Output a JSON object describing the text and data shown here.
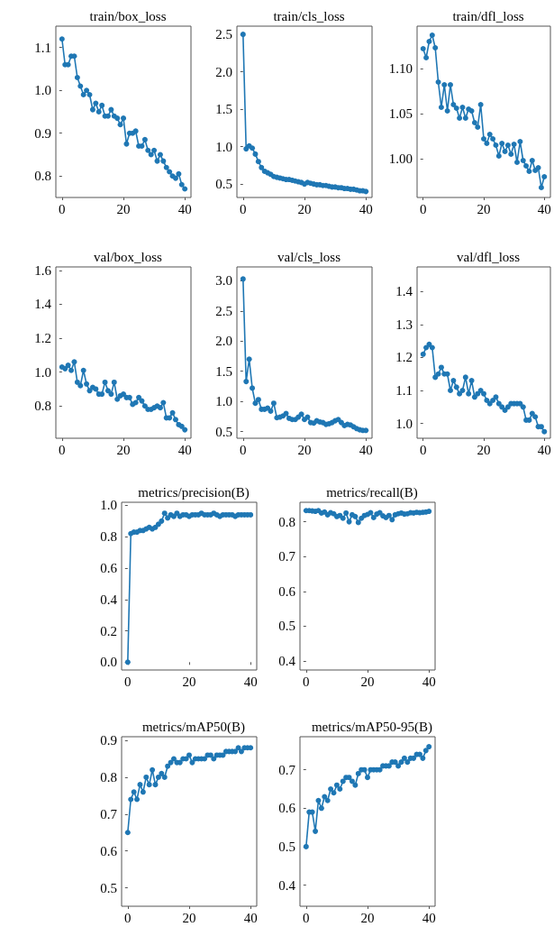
{
  "chart_data": [
    {
      "type": "line",
      "title": "train/box_loss",
      "x": [
        0,
        1,
        2,
        3,
        4,
        5,
        6,
        7,
        8,
        9,
        10,
        11,
        12,
        13,
        14,
        15,
        16,
        17,
        18,
        19,
        20,
        21,
        22,
        23,
        24,
        25,
        26,
        27,
        28,
        29,
        30,
        31,
        32,
        33,
        34,
        35,
        36,
        37,
        38,
        39,
        40
      ],
      "xlim": [
        -2,
        42
      ],
      "xticks": [
        0,
        20,
        40
      ],
      "ylim": [
        0.75,
        1.15
      ],
      "yticks": [
        0.8,
        0.9,
        {
          "value": 1,
          "label": "1.0"
        },
        1.1
      ],
      "grid": false,
      "marker": "circle",
      "line_style": "solid",
      "series": [
        {
          "color": "#1f77b4",
          "values": [
            1.12,
            1.06,
            1.06,
            1.08,
            1.08,
            1.03,
            1.01,
            0.99,
            1.0,
            0.99,
            0.955,
            0.97,
            0.95,
            0.965,
            0.94,
            0.94,
            0.955,
            0.94,
            0.935,
            0.92,
            0.935,
            0.875,
            0.9,
            0.9,
            0.905,
            0.87,
            0.87,
            0.885,
            0.86,
            0.85,
            0.86,
            0.835,
            0.85,
            0.835,
            0.82,
            0.81,
            0.8,
            0.795,
            0.805,
            0.78,
            0.77
          ]
        }
      ]
    },
    {
      "type": "line",
      "title": "train/cls_loss",
      "x": [
        0,
        1,
        2,
        3,
        4,
        5,
        6,
        7,
        8,
        9,
        10,
        11,
        12,
        13,
        14,
        15,
        16,
        17,
        18,
        19,
        20,
        21,
        22,
        23,
        24,
        25,
        26,
        27,
        28,
        29,
        30,
        31,
        32,
        33,
        34,
        35,
        36,
        37,
        38,
        39,
        40
      ],
      "xlim": [
        -2,
        42
      ],
      "xticks": [
        0,
        20,
        40
      ],
      "ylim": [
        0.32,
        2.61
      ],
      "yticks": [
        0.5,
        {
          "value": 1,
          "label": "1.0"
        },
        1.5,
        {
          "value": 2,
          "label": "2.0"
        },
        2.5
      ],
      "grid": false,
      "marker": "circle",
      "line_style": "solid",
      "series": [
        {
          "color": "#1f77b4",
          "values": [
            2.5,
            0.97,
            1.01,
            0.98,
            0.9,
            0.8,
            0.72,
            0.67,
            0.65,
            0.63,
            0.6,
            0.59,
            0.58,
            0.57,
            0.56,
            0.56,
            0.55,
            0.54,
            0.53,
            0.52,
            0.5,
            0.52,
            0.51,
            0.5,
            0.49,
            0.49,
            0.48,
            0.48,
            0.47,
            0.46,
            0.46,
            0.45,
            0.45,
            0.44,
            0.44,
            0.43,
            0.43,
            0.42,
            0.41,
            0.41,
            0.4
          ]
        }
      ]
    },
    {
      "type": "line",
      "title": "train/dfl_loss",
      "x": [
        0,
        1,
        2,
        3,
        4,
        5,
        6,
        7,
        8,
        9,
        10,
        11,
        12,
        13,
        14,
        15,
        16,
        17,
        18,
        19,
        20,
        21,
        22,
        23,
        24,
        25,
        26,
        27,
        28,
        29,
        30,
        31,
        32,
        33,
        34,
        35,
        36,
        37,
        38,
        39,
        40
      ],
      "xlim": [
        -2,
        42
      ],
      "xticks": [
        0,
        20,
        40
      ],
      "ylim": [
        0.957,
        1.147
      ],
      "yticks": [
        {
          "value": 1,
          "label": "1.00"
        },
        1.05,
        {
          "value": 1.1,
          "label": "1.10"
        }
      ],
      "grid": false,
      "marker": "circle",
      "line_style": "solid",
      "series": [
        {
          "color": "#1f77b4",
          "values": [
            1.122,
            1.112,
            1.13,
            1.137,
            1.123,
            1.085,
            1.057,
            1.082,
            1.053,
            1.082,
            1.06,
            1.056,
            1.045,
            1.057,
            1.045,
            1.055,
            1.053,
            1.04,
            1.035,
            1.06,
            1.022,
            1.017,
            1.027,
            1.022,
            1.015,
            1.003,
            1.017,
            1.008,
            1.015,
            1.005,
            1.016,
            0.996,
            1.019,
            0.998,
            0.992,
            0.986,
            0.998,
            0.987,
            0.99,
            0.968,
            0.98
          ]
        }
      ]
    },
    {
      "type": "line",
      "title": "val/box_loss",
      "x": [
        0,
        1,
        2,
        3,
        4,
        5,
        6,
        7,
        8,
        9,
        10,
        11,
        12,
        13,
        14,
        15,
        16,
        17,
        18,
        19,
        20,
        21,
        22,
        23,
        24,
        25,
        26,
        27,
        28,
        29,
        30,
        31,
        32,
        33,
        34,
        35,
        36,
        37,
        38,
        39,
        40
      ],
      "xlim": [
        -2,
        42
      ],
      "xticks": [
        0,
        20,
        40
      ],
      "ylim": [
        0.61,
        1.62
      ],
      "yticks": [
        0.8,
        {
          "value": 1,
          "label": "1.0"
        },
        1.2,
        1.4,
        1.6
      ],
      "grid": false,
      "marker": "circle",
      "line_style": "solid",
      "series": [
        {
          "color": "#1f77b4",
          "values": [
            1.03,
            1.02,
            1.04,
            1.01,
            1.06,
            0.94,
            0.92,
            1.01,
            0.93,
            0.89,
            0.91,
            0.9,
            0.87,
            0.87,
            0.94,
            0.89,
            0.87,
            0.94,
            0.84,
            0.86,
            0.87,
            0.85,
            0.85,
            0.81,
            0.82,
            0.85,
            0.83,
            0.8,
            0.78,
            0.78,
            0.79,
            0.8,
            0.79,
            0.82,
            0.73,
            0.73,
            0.76,
            0.72,
            0.69,
            0.68,
            0.66
          ]
        }
      ]
    },
    {
      "type": "line",
      "title": "val/cls_loss",
      "x": [
        0,
        1,
        2,
        3,
        4,
        5,
        6,
        7,
        8,
        9,
        10,
        11,
        12,
        13,
        14,
        15,
        16,
        17,
        18,
        19,
        20,
        21,
        22,
        23,
        24,
        25,
        26,
        27,
        28,
        29,
        30,
        31,
        32,
        33,
        34,
        35,
        36,
        37,
        38,
        39,
        40
      ],
      "xlim": [
        -2,
        42
      ],
      "xticks": [
        0,
        20,
        40
      ],
      "ylim": [
        0.39,
        3.23
      ],
      "yticks": [
        0.5,
        {
          "value": 1,
          "label": "1.0"
        },
        1.5,
        {
          "value": 2,
          "label": "2.0"
        },
        2.5,
        {
          "value": 3,
          "label": "3.0"
        }
      ],
      "grid": false,
      "marker": "circle",
      "line_style": "solid",
      "series": [
        {
          "color": "#1f77b4",
          "values": [
            3.03,
            1.33,
            1.7,
            1.22,
            0.97,
            1.03,
            0.87,
            0.87,
            0.89,
            0.84,
            0.97,
            0.73,
            0.74,
            0.76,
            0.8,
            0.72,
            0.7,
            0.7,
            0.74,
            0.79,
            0.7,
            0.74,
            0.65,
            0.64,
            0.68,
            0.66,
            0.65,
            0.62,
            0.63,
            0.65,
            0.68,
            0.7,
            0.65,
            0.6,
            0.62,
            0.61,
            0.58,
            0.55,
            0.53,
            0.52,
            0.52
          ]
        }
      ]
    },
    {
      "type": "line",
      "title": "val/dfl_loss",
      "x": [
        0,
        1,
        2,
        3,
        4,
        5,
        6,
        7,
        8,
        9,
        10,
        11,
        12,
        13,
        14,
        15,
        16,
        17,
        18,
        19,
        20,
        21,
        22,
        23,
        24,
        25,
        26,
        27,
        28,
        29,
        30,
        31,
        32,
        33,
        34,
        35,
        36,
        37,
        38,
        39,
        40
      ],
      "xlim": [
        -2,
        42
      ],
      "xticks": [
        0,
        20,
        40
      ],
      "ylim": [
        0.955,
        1.475
      ],
      "yticks": [
        {
          "value": 1,
          "label": "1.0"
        },
        1.1,
        1.2,
        1.3,
        1.4
      ],
      "grid": false,
      "marker": "circle",
      "line_style": "solid",
      "series": [
        {
          "color": "#1f77b4",
          "values": [
            1.21,
            1.23,
            1.24,
            1.23,
            1.14,
            1.15,
            1.17,
            1.15,
            1.15,
            1.1,
            1.13,
            1.11,
            1.09,
            1.1,
            1.14,
            1.09,
            1.13,
            1.08,
            1.09,
            1.1,
            1.09,
            1.07,
            1.06,
            1.07,
            1.08,
            1.06,
            1.05,
            1.04,
            1.05,
            1.06,
            1.06,
            1.06,
            1.06,
            1.05,
            1.01,
            1.01,
            1.03,
            1.02,
            0.99,
            0.99,
            0.975
          ]
        }
      ]
    },
    {
      "type": "line",
      "title": "metrics/precision(B)",
      "x": [
        0,
        1,
        2,
        3,
        4,
        5,
        6,
        7,
        8,
        9,
        10,
        11,
        12,
        13,
        14,
        15,
        16,
        17,
        18,
        19,
        20,
        21,
        22,
        23,
        24,
        25,
        26,
        27,
        28,
        29,
        30,
        31,
        32,
        33,
        34,
        35,
        36,
        37,
        38,
        39,
        40
      ],
      "xlim": [
        -2,
        42
      ],
      "xticks": [
        0,
        20,
        40
      ],
      "ylim": [
        -0.05,
        1.02
      ],
      "yticks": [
        {
          "value": 0,
          "label": "0.0"
        },
        0.2,
        0.4,
        0.6,
        0.8,
        {
          "value": 1,
          "label": "1.0"
        }
      ],
      "grid": false,
      "marker": "circle",
      "line_style": "solid",
      "series": [
        {
          "color": "#1f77b4",
          "values": [
            0,
            0.82,
            0.83,
            0.83,
            0.84,
            0.84,
            0.85,
            0.86,
            0.85,
            0.86,
            0.88,
            0.9,
            0.95,
            0.92,
            0.94,
            0.93,
            0.95,
            0.93,
            0.94,
            0.94,
            0.93,
            0.94,
            0.94,
            0.94,
            0.95,
            0.94,
            0.94,
            0.94,
            0.95,
            0.94,
            0.93,
            0.94,
            0.94,
            0.94,
            0.94,
            0.93,
            0.94,
            0.94,
            0.94,
            0.94,
            0.94
          ]
        }
      ]
    },
    {
      "type": "line",
      "title": "metrics/recall(B)",
      "x": [
        0,
        1,
        2,
        3,
        4,
        5,
        6,
        7,
        8,
        9,
        10,
        11,
        12,
        13,
        14,
        15,
        16,
        17,
        18,
        19,
        20,
        21,
        22,
        23,
        24,
        25,
        26,
        27,
        28,
        29,
        30,
        31,
        32,
        33,
        34,
        35,
        36,
        37,
        38,
        39,
        40
      ],
      "xlim": [
        -2,
        42
      ],
      "xticks": [
        0,
        20,
        40
      ],
      "ylim": [
        0.374,
        0.856
      ],
      "yticks": [
        0.4,
        0.5,
        0.6,
        0.7,
        0.8
      ],
      "grid": false,
      "marker": "circle",
      "line_style": "solid",
      "series": [
        {
          "color": "#1f77b4",
          "values": [
            0.832,
            0.832,
            0.831,
            0.83,
            0.832,
            0.825,
            0.828,
            0.82,
            0.826,
            0.823,
            0.815,
            0.818,
            0.81,
            0.825,
            0.8,
            0.82,
            0.815,
            0.798,
            0.81,
            0.818,
            0.821,
            0.826,
            0.812,
            0.822,
            0.826,
            0.817,
            0.812,
            0.818,
            0.806,
            0.82,
            0.823,
            0.825,
            0.822,
            0.823,
            0.826,
            0.825,
            0.827,
            0.826,
            0.827,
            0.828,
            0.83
          ]
        }
      ]
    },
    {
      "type": "line",
      "title": "metrics/mAP50(B)",
      "x": [
        0,
        1,
        2,
        3,
        4,
        5,
        6,
        7,
        8,
        9,
        10,
        11,
        12,
        13,
        14,
        15,
        16,
        17,
        18,
        19,
        20,
        21,
        22,
        23,
        24,
        25,
        26,
        27,
        28,
        29,
        30,
        31,
        32,
        33,
        34,
        35,
        36,
        37,
        38,
        39,
        40
      ],
      "xlim": [
        -2,
        42
      ],
      "xticks": [
        0,
        20,
        40
      ],
      "ylim": [
        0.45,
        0.91
      ],
      "yticks": [
        0.5,
        0.6,
        0.7,
        0.8,
        0.9
      ],
      "grid": false,
      "marker": "circle",
      "line_style": "solid",
      "series": [
        {
          "color": "#1f77b4",
          "values": [
            0.65,
            0.74,
            0.76,
            0.74,
            0.78,
            0.76,
            0.8,
            0.78,
            0.82,
            0.78,
            0.8,
            0.81,
            0.8,
            0.83,
            0.84,
            0.85,
            0.84,
            0.84,
            0.85,
            0.85,
            0.86,
            0.84,
            0.85,
            0.85,
            0.85,
            0.85,
            0.86,
            0.86,
            0.85,
            0.86,
            0.86,
            0.86,
            0.87,
            0.87,
            0.87,
            0.87,
            0.88,
            0.87,
            0.88,
            0.88,
            0.88
          ]
        }
      ]
    },
    {
      "type": "line",
      "title": "metrics/mAP50-95(B)",
      "x": [
        0,
        1,
        2,
        3,
        4,
        5,
        6,
        7,
        8,
        9,
        10,
        11,
        12,
        13,
        14,
        15,
        16,
        17,
        18,
        19,
        20,
        21,
        22,
        23,
        24,
        25,
        26,
        27,
        28,
        29,
        30,
        31,
        32,
        33,
        34,
        35,
        36,
        37,
        38,
        39,
        40
      ],
      "xlim": [
        -2,
        42
      ],
      "xticks": [
        0,
        20,
        40
      ],
      "ylim": [
        0.345,
        0.786
      ],
      "yticks": [
        0.4,
        0.5,
        0.6,
        0.7
      ],
      "grid": false,
      "marker": "circle",
      "line_style": "solid",
      "series": [
        {
          "color": "#1f77b4",
          "values": [
            0.5,
            0.59,
            0.59,
            0.54,
            0.62,
            0.6,
            0.63,
            0.62,
            0.65,
            0.64,
            0.66,
            0.65,
            0.67,
            0.68,
            0.68,
            0.67,
            0.66,
            0.69,
            0.7,
            0.7,
            0.68,
            0.7,
            0.7,
            0.7,
            0.7,
            0.71,
            0.71,
            0.71,
            0.72,
            0.72,
            0.71,
            0.72,
            0.73,
            0.72,
            0.73,
            0.73,
            0.74,
            0.74,
            0.73,
            0.75,
            0.76
          ]
        }
      ]
    }
  ]
}
